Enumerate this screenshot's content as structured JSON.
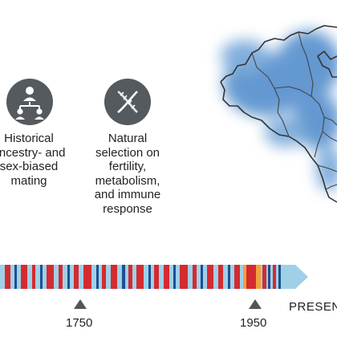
{
  "factors": [
    {
      "icon": "family-tree-icon",
      "text": "Historical\nancestry- and\nsex-biased\nmating"
    },
    {
      "icon": "dna-helix-icon",
      "text": "Natural\nselection on\nfertility,\nmetabolism,\nand immune\nresponse"
    }
  ],
  "timeline": {
    "markers": [
      "1750",
      "1950"
    ],
    "end_label": "PRESENT",
    "colors": {
      "light_blue": "#9fd0e8",
      "red": "#d42b30",
      "dark_blue": "#1d4f91",
      "orange": "#f2a23a"
    }
  },
  "map": {
    "fill_color": "#4a87c9",
    "outline_color": "#333333"
  }
}
